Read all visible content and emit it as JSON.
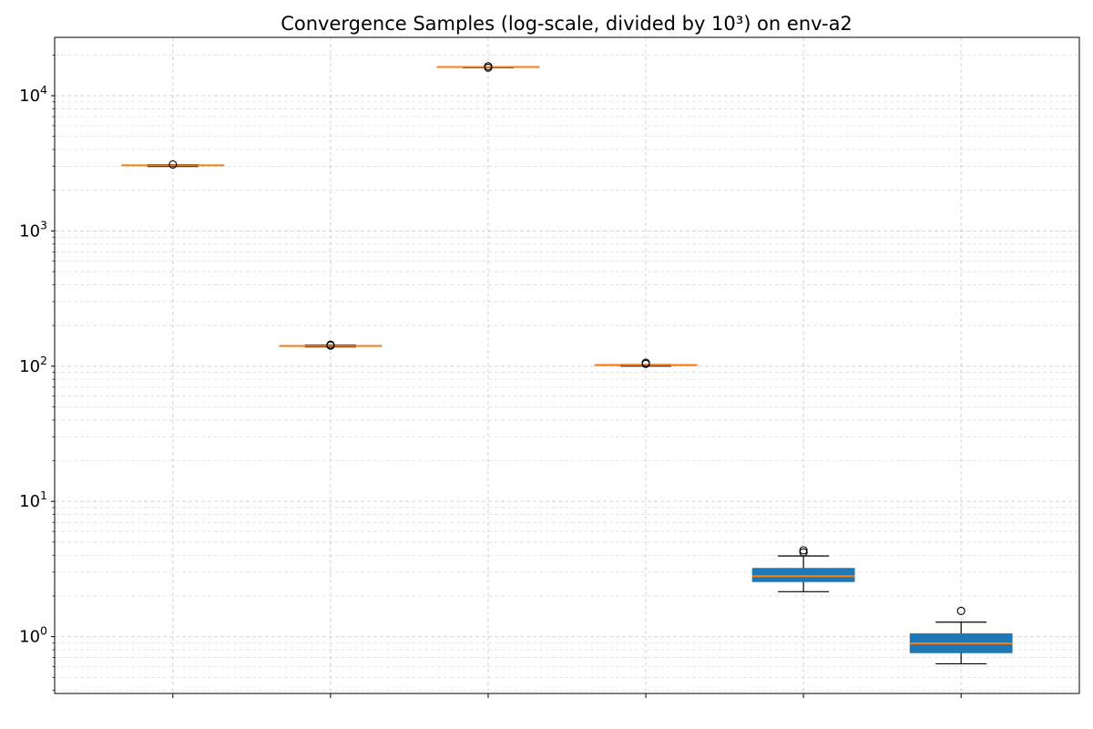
{
  "chart_data": {
    "type": "box",
    "title": "Convergence Samples (log-scale, divided by 10³) on env-a2",
    "xlabel": "",
    "ylabel": "",
    "yscale": "log",
    "ylim": [
      0.38,
      27000
    ],
    "y_ticks": [
      {
        "value": 1,
        "base": "10",
        "exp": "0"
      },
      {
        "value": 10,
        "base": "10",
        "exp": "1"
      },
      {
        "value": 100,
        "base": "10",
        "exp": "2"
      },
      {
        "value": 1000,
        "base": "10",
        "exp": "3"
      },
      {
        "value": 10000,
        "base": "10",
        "exp": "4"
      }
    ],
    "categories": [
      "",
      "",
      "",
      "",
      "",
      ""
    ],
    "grid": true,
    "colors": {
      "box_fill": "#1f77b4",
      "median": "#ff7f0e",
      "whisker": "#000000",
      "grid": "#b0b0b0"
    },
    "boxes": [
      {
        "whislo": 3000,
        "q1": 3040,
        "med": 3060,
        "q3": 3080,
        "whishi": 3090,
        "fliers": [
          3100
        ]
      },
      {
        "whislo": 139,
        "q1": 140,
        "med": 141,
        "q3": 142,
        "whishi": 143,
        "fliers": [
          142,
          144
        ]
      },
      {
        "whislo": 16100,
        "q1": 16200,
        "med": 16300,
        "q3": 16350,
        "whishi": 16400,
        "fliers": [
          16100,
          16500
        ]
      },
      {
        "whislo": 100,
        "q1": 101,
        "med": 102,
        "q3": 102.5,
        "whishi": 103,
        "fliers": [
          104,
          106
        ]
      },
      {
        "whislo": 2.15,
        "q1": 2.55,
        "med": 2.8,
        "q3": 3.2,
        "whishi": 3.95,
        "fliers": [
          4.2,
          4.35
        ]
      },
      {
        "whislo": 0.63,
        "q1": 0.76,
        "med": 0.89,
        "q3": 1.05,
        "whishi": 1.28,
        "fliers": [
          1.55
        ]
      }
    ]
  }
}
